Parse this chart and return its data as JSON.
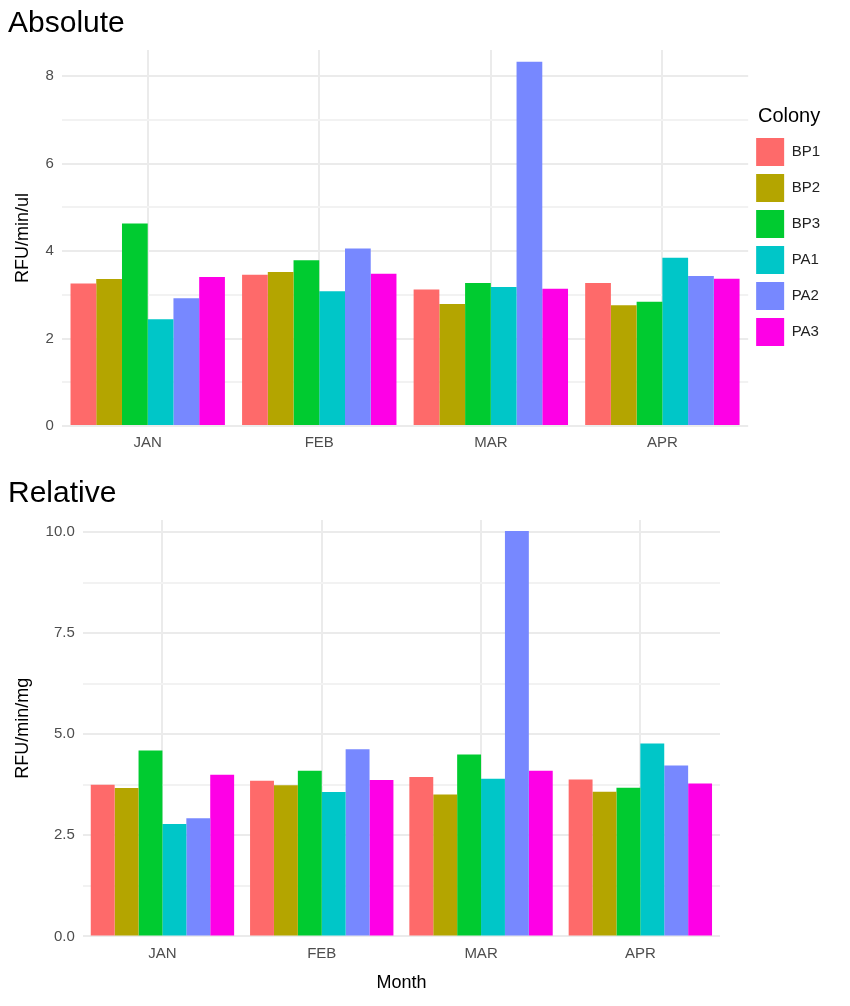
{
  "chart_data": [
    {
      "type": "bar",
      "title": "Absolute",
      "ylabel": "RFU/min/ul",
      "legend_title": "Colony",
      "legend": "right",
      "grid": true,
      "categories": [
        "JAN",
        "FEB",
        "MAR",
        "APR"
      ],
      "ylim": [
        0,
        8.6
      ],
      "yticks": [
        0,
        {
          "value": 1,
          "label": null
        },
        2,
        {
          "value": 3,
          "label": null
        },
        4,
        {
          "value": 5,
          "label": null
        },
        6,
        {
          "value": 7,
          "label": null
        },
        8
      ],
      "series": [
        {
          "name": "BP1",
          "color": "#fe6a6a",
          "values": [
            3.26,
            3.46,
            3.12,
            3.27
          ]
        },
        {
          "name": "BP2",
          "color": "#b4a500",
          "values": [
            3.36,
            3.52,
            2.79,
            2.76
          ]
        },
        {
          "name": "BP3",
          "color": "#00cb30",
          "values": [
            4.63,
            3.79,
            3.27,
            2.84
          ]
        },
        {
          "name": "PA1",
          "color": "#00c6c8",
          "values": [
            2.44,
            3.08,
            3.18,
            3.85
          ]
        },
        {
          "name": "PA2",
          "color": "#7788ff",
          "values": [
            2.92,
            4.06,
            8.33,
            3.43
          ]
        },
        {
          "name": "PA3",
          "color": "#fe00e6",
          "values": [
            3.41,
            3.48,
            3.14,
            3.37
          ]
        }
      ]
    },
    {
      "type": "bar",
      "title": "Relative",
      "xlabel": "Month",
      "ylabel": "RFU/min/mg",
      "grid": true,
      "categories": [
        "JAN",
        "FEB",
        "MAR",
        "APR"
      ],
      "ylim": [
        0,
        10.3
      ],
      "yticks": [
        "0.0",
        {
          "value": 1.25,
          "label": null
        },
        {
          "value": 2.5,
          "label": "2.5"
        },
        {
          "value": 3.75,
          "label": null
        },
        {
          "value": 5,
          "label": "5.0"
        },
        {
          "value": 6.25,
          "label": null
        },
        {
          "value": 7.5,
          "label": "7.5"
        },
        {
          "value": 8.75,
          "label": null
        },
        {
          "value": 10,
          "label": "10.0"
        }
      ],
      "series": [
        {
          "color": "#fe6a6a",
          "values": [
            3.75,
            3.85,
            3.94,
            3.88
          ]
        },
        {
          "color": "#b4a500",
          "values": [
            3.67,
            3.74,
            3.51,
            3.58
          ]
        },
        {
          "color": "#00cb30",
          "values": [
            4.6,
            4.1,
            4.5,
            3.68
          ]
        },
        {
          "color": "#00c6c8",
          "values": [
            2.78,
            3.57,
            3.9,
            4.77
          ]
        },
        {
          "color": "#7788ff",
          "values": [
            2.92,
            4.63,
            10.03,
            4.23
          ]
        },
        {
          "color": "#fe00e6",
          "values": [
            4.0,
            3.87,
            4.1,
            3.78
          ]
        }
      ]
    }
  ]
}
